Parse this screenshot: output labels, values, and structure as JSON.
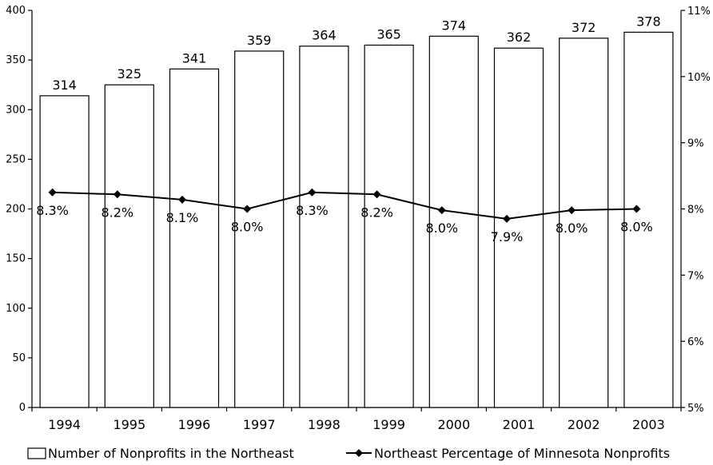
{
  "chart_data": {
    "type": "bar",
    "categories": [
      "1994",
      "1995",
      "1996",
      "1997",
      "1998",
      "1999",
      "2000",
      "2001",
      "2002",
      "2003"
    ],
    "series": [
      {
        "name": "Number of Nonprofits in the Northeast",
        "type": "bar",
        "axis": "left",
        "values": [
          314,
          325,
          341,
          359,
          364,
          365,
          374,
          362,
          372,
          378
        ],
        "labels": [
          "314",
          "325",
          "341",
          "359",
          "364",
          "365",
          "374",
          "362",
          "372",
          "378"
        ]
      },
      {
        "name": "Northeast Percentage of Minnesota Nonprofits",
        "type": "line",
        "axis": "right",
        "values": [
          8.25,
          8.22,
          8.14,
          8.0,
          8.25,
          8.22,
          7.98,
          7.85,
          7.98,
          8.0
        ],
        "labels": [
          "8.3%",
          "8.2%",
          "8.1%",
          "8.0%",
          "8.3%",
          "8.2%",
          "8.0%",
          "7.9%",
          "8.0%",
          "8.0%"
        ]
      }
    ],
    "y_left": {
      "min": 0,
      "max": 400,
      "ticks": [
        "0",
        "50",
        "100",
        "150",
        "200",
        "250",
        "300",
        "350",
        "400"
      ]
    },
    "y_right": {
      "min": 5,
      "max": 11,
      "ticks": [
        "5%",
        "6%",
        "7%",
        "8%",
        "9%",
        "10%",
        "11%"
      ]
    },
    "legend_position": "bottom",
    "grid": false
  }
}
